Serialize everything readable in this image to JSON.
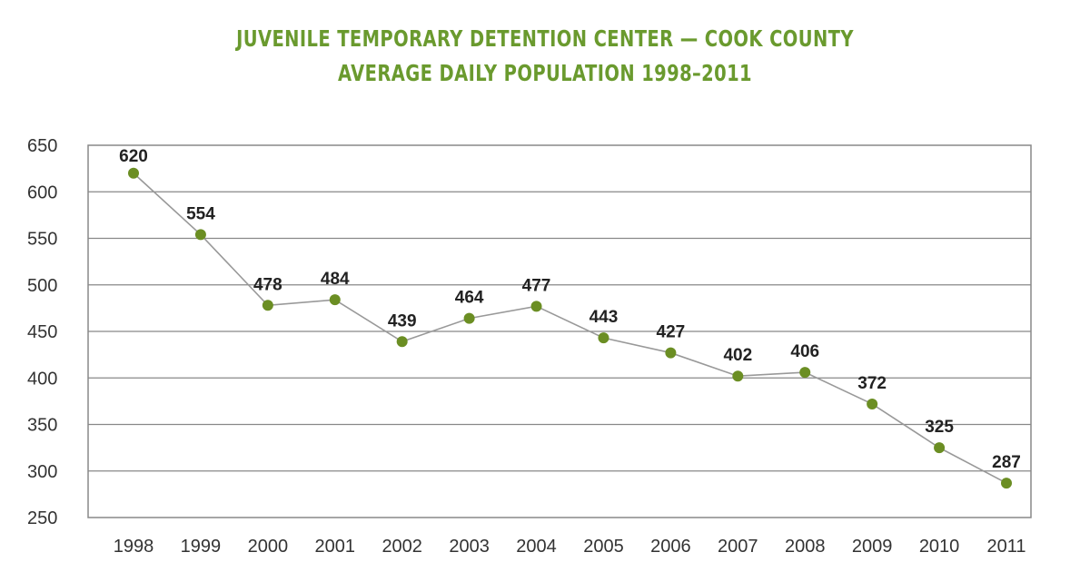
{
  "chart_data": {
    "type": "line",
    "title": "JUVENILE TEMPORARY DETENTION CENTER — COOK COUNTY",
    "subtitle": "AVERAGE DAILY POPULATION 1998–2011",
    "xlabel": "",
    "ylabel": "",
    "categories": [
      "1998",
      "1999",
      "2000",
      "2001",
      "2002",
      "2003",
      "2004",
      "2005",
      "2006",
      "2007",
      "2008",
      "2009",
      "2010",
      "2011"
    ],
    "series": [
      {
        "values": [
          620,
          554,
          478,
          484,
          439,
          464,
          477,
          443,
          427,
          402,
          406,
          372,
          325,
          287
        ]
      }
    ],
    "data_labels": [
      "620",
      "554",
      "478",
      "484",
      "439",
      "464",
      "477",
      "443",
      "427",
      "402",
      "406",
      "372",
      "325",
      "287"
    ],
    "ylim": [
      250,
      650
    ],
    "yticks": [
      250,
      300,
      350,
      400,
      450,
      500,
      550,
      600,
      650
    ],
    "ytick_labels": [
      "250",
      "300",
      "350",
      "400",
      "450",
      "500",
      "550",
      "600",
      "650"
    ],
    "grid": true,
    "legend": "none",
    "colors": {
      "title": "#6a9a2e",
      "marker": "#6b8e23",
      "line": "#999999",
      "grid": "#888888"
    }
  }
}
